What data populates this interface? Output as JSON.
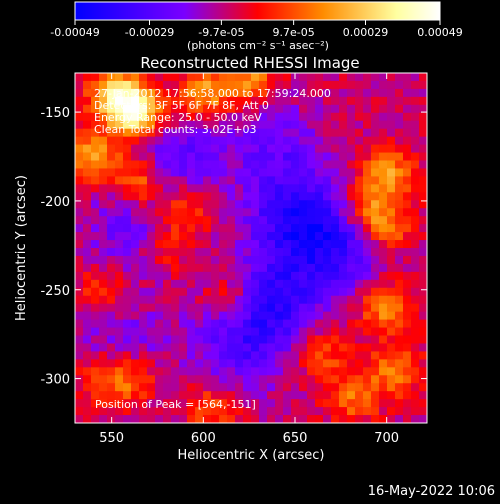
{
  "chart_data": {
    "type": "heatmap",
    "title": "Reconstructed RHESSI Image",
    "xlabel": "Heliocentric X (arcsec)",
    "ylabel": "Heliocentric Y (arcsec)",
    "xlim": [
      530,
      722
    ],
    "ylim": [
      -325,
      -128
    ],
    "x_ticks": [
      "550",
      "600",
      "650",
      "700"
    ],
    "x_tick_values": [
      550,
      600,
      650,
      700
    ],
    "y_ticks": [
      "-150",
      "-200",
      "-250",
      "-300"
    ],
    "y_tick_values": [
      -150,
      -200,
      -250,
      -300
    ],
    "colorbar": {
      "ticks": [
        "-0.00049",
        "-0.00029",
        "-9.7e-05",
        "9.7e-05",
        "0.00029",
        "0.00049"
      ],
      "tick_values": [
        -0.00049,
        -0.00029,
        -9.7e-05,
        9.7e-05,
        0.00029,
        0.00049
      ],
      "range": [
        -0.00049,
        0.00049
      ],
      "units": "(photons cm⁻² s⁻¹ asec⁻²)",
      "colors": [
        "#0000ff",
        "#7a00ff",
        "#ff0000",
        "#ff8c00",
        "#ffffa0",
        "#ffffff"
      ]
    },
    "info_lines": [
      "27-Jan-2012 17:56:58.000 to 17:59:24.000",
      "Detectors: 3F 5F 6F 7F 8F, Att 0",
      "Energy Range: 25.0 - 50.0 keV",
      "Clean    Total counts: 3.02E+03"
    ],
    "peak_text": "Position of Peak = [564,-151]",
    "peak": [
      564,
      -151
    ],
    "blobs": [
      {
        "x": 564,
        "y": -151,
        "v": 0.00049
      },
      {
        "x": 552,
        "y": -140,
        "v": 0.0004
      },
      {
        "x": 600,
        "y": -140,
        "v": 0.0003
      },
      {
        "x": 625,
        "y": -132,
        "v": 0.00026
      },
      {
        "x": 540,
        "y": -175,
        "v": 0.00032
      },
      {
        "x": 565,
        "y": -190,
        "v": 0.00028
      },
      {
        "x": 590,
        "y": -205,
        "v": 0.0002
      },
      {
        "x": 700,
        "y": -185,
        "v": 0.0003
      },
      {
        "x": 688,
        "y": -205,
        "v": 0.00022
      },
      {
        "x": 700,
        "y": -215,
        "v": 0.00025
      },
      {
        "x": 615,
        "y": -255,
        "v": 0.00018
      },
      {
        "x": 545,
        "y": -250,
        "v": 0.00016
      },
      {
        "x": 560,
        "y": -300,
        "v": 0.00022
      },
      {
        "x": 543,
        "y": -300,
        "v": 0.00018
      },
      {
        "x": 665,
        "y": -285,
        "v": 0.00018
      },
      {
        "x": 700,
        "y": -260,
        "v": 0.00028
      },
      {
        "x": 705,
        "y": -295,
        "v": 0.00024
      },
      {
        "x": 605,
        "y": -317,
        "v": 0.00018
      },
      {
        "x": 682,
        "y": -310,
        "v": 0.00022
      },
      {
        "x": 580,
        "y": -226,
        "v": 0.00014
      },
      {
        "x": 650,
        "y": -210,
        "v": -0.00028
      },
      {
        "x": 675,
        "y": -225,
        "v": -0.00024
      },
      {
        "x": 640,
        "y": -255,
        "v": -0.00026
      },
      {
        "x": 620,
        "y": -280,
        "v": -0.0002
      },
      {
        "x": 585,
        "y": -175,
        "v": -0.00018
      },
      {
        "x": 560,
        "y": -215,
        "v": -0.00015
      },
      {
        "x": 640,
        "y": -170,
        "v": -0.00015
      },
      {
        "x": 555,
        "y": -280,
        "v": -0.00012
      }
    ]
  },
  "footer": {
    "timestamp": "16-May-2022 10:06"
  }
}
